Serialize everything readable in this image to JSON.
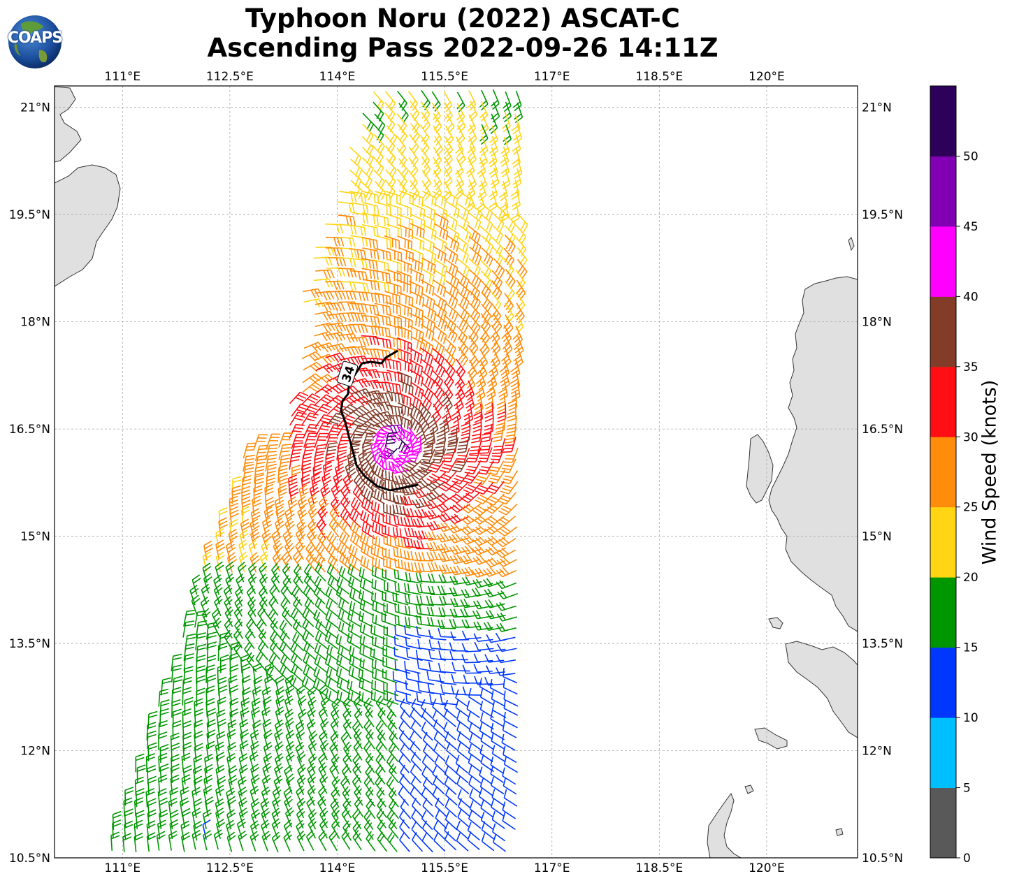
{
  "header": {
    "title_line1": "Typhoon Noru (2022) ASCAT-C",
    "title_line2": "Ascending Pass 2022-09-26 14:11Z",
    "logo_text": "COAPS"
  },
  "map": {
    "lon_ticks": [
      "111°E",
      "112.5°E",
      "114°E",
      "115.5°E",
      "117°E",
      "118.5°E",
      "120°E"
    ],
    "lat_ticks": [
      "21°N",
      "19.5°N",
      "18°N",
      "16.5°N",
      "15°N",
      "13.5°N",
      "12°N",
      "10.5°N"
    ],
    "lon_range": [
      110.05,
      121.27
    ],
    "lat_range": [
      10.5,
      21.3
    ],
    "wind_radius_label": "34",
    "land_color": "#e0e0e0"
  },
  "colorbar": {
    "label": "Wind Speed (knots)",
    "ticks": [
      "0",
      "5",
      "10",
      "15",
      "20",
      "25",
      "30",
      "35",
      "40",
      "45",
      "50"
    ],
    "colors": [
      "#595959",
      "#00bfff",
      "#0037ff",
      "#009600",
      "#ffd514",
      "#ff8c0a",
      "#ff0f14",
      "#823c28",
      "#ff00ff",
      "#8200b4",
      "#2d005a"
    ]
  }
}
